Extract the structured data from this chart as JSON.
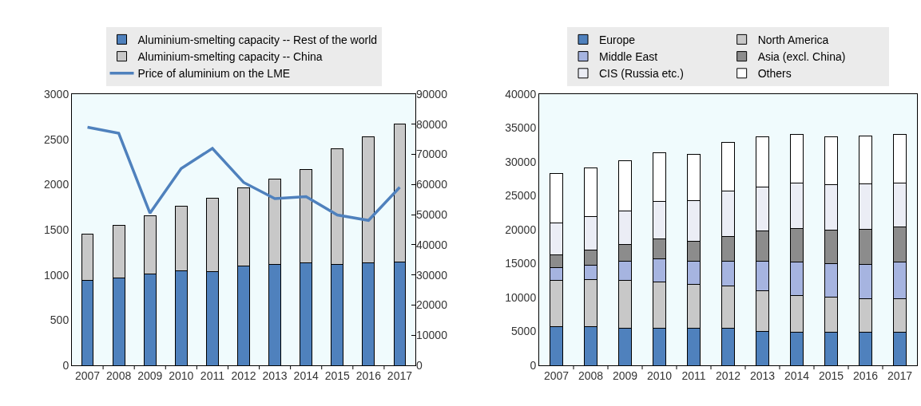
{
  "chart_data": [
    {
      "type": "bar",
      "stacked": true,
      "legend": "top",
      "categories": [
        "2007",
        "2008",
        "2009",
        "2010",
        "2011",
        "2012",
        "2013",
        "2014",
        "2015",
        "2016",
        "2017"
      ],
      "series": [
        {
          "name": "Aluminium-smelting capacity -- Rest of the world",
          "color": "#4f81bd",
          "values": [
            940,
            965,
            1010,
            1050,
            1035,
            1095,
            1120,
            1130,
            1120,
            1130,
            1140
          ]
        },
        {
          "name": "Aluminium-smelting capacity -- China",
          "color": "#c8c8c8",
          "values": [
            515,
            585,
            645,
            710,
            810,
            870,
            940,
            1035,
            1280,
            1395,
            1525
          ]
        },
        {
          "name": "Price of aluminium on the LME",
          "type": "line",
          "axis": "y2",
          "color": "#4f81bd",
          "values": [
            79000,
            77000,
            50500,
            65300,
            72000,
            60700,
            55300,
            56000,
            49900,
            48100,
            59100
          ]
        }
      ],
      "ylim": [
        0,
        3000
      ],
      "yticks": [
        0,
        500,
        1000,
        1500,
        2000,
        2500,
        3000
      ],
      "y2lim": [
        0,
        90000
      ],
      "y2ticks": [
        0,
        10000,
        20000,
        30000,
        40000,
        50000,
        60000,
        70000,
        80000,
        90000
      ]
    },
    {
      "type": "bar",
      "stacked": true,
      "legend": "top",
      "categories": [
        "2007",
        "2008",
        "2009",
        "2010",
        "2011",
        "2012",
        "2013",
        "2014",
        "2015",
        "2016",
        "2017"
      ],
      "series": [
        {
          "name": "Europe",
          "color": "#4f81bd",
          "values": [
            5700,
            5700,
            5500,
            5500,
            5500,
            5500,
            5050,
            4900,
            4900,
            4900,
            4900
          ]
        },
        {
          "name": "North America",
          "color": "#c8c8c8",
          "values": [
            6800,
            7000,
            7000,
            6750,
            6400,
            6250,
            5900,
            5400,
            5200,
            4900,
            4900
          ]
        },
        {
          "name": "Middle East",
          "color": "#a6b4e0",
          "values": [
            1900,
            2100,
            2800,
            3500,
            3450,
            3600,
            4400,
            4950,
            4950,
            5050,
            5400
          ]
        },
        {
          "name": "Asia (excl. China)",
          "color": "#8c8c8c",
          "values": [
            1900,
            2250,
            2550,
            2850,
            2900,
            3700,
            4450,
            4950,
            4950,
            5250,
            5250
          ]
        },
        {
          "name": "CIS (Russia etc.)",
          "color": "#ebedf5",
          "values": [
            4750,
            4850,
            4950,
            5550,
            6000,
            6650,
            6500,
            6650,
            6650,
            6650,
            6450
          ]
        },
        {
          "name": "Others",
          "color": "#ffffff",
          "values": [
            7200,
            7200,
            7350,
            7200,
            6900,
            7150,
            7350,
            7200,
            7050,
            7050,
            7200
          ]
        }
      ],
      "ylim": [
        0,
        40000
      ],
      "yticks": [
        0,
        5000,
        10000,
        15000,
        20000,
        25000,
        30000,
        35000,
        40000
      ]
    }
  ]
}
